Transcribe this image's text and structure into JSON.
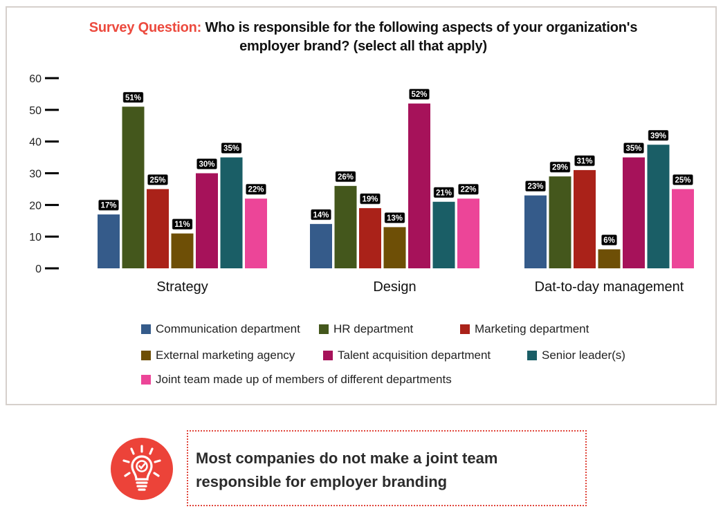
{
  "title": {
    "lead": "Survey Question:",
    "text": " Who is responsible for the following aspects of your organization's employer brand? (select all that apply)"
  },
  "colors": {
    "accent": "#ec4a3e",
    "label_bg": "#000000"
  },
  "chart_data": {
    "type": "bar",
    "title": "Survey Question: Who is responsible for the following aspects of your organization's employer brand? (select all that apply)",
    "xlabel": "",
    "ylabel": "",
    "ylim": [
      0,
      60
    ],
    "yticks": [
      "0",
      "10",
      "20",
      "30",
      "40",
      "50",
      "60"
    ],
    "grid": false,
    "legend_position": "bottom",
    "categories": [
      "Strategy",
      "Design",
      "Dat-to-day management"
    ],
    "series": [
      {
        "name": "Communication department",
        "color": "#355b8a",
        "values": [
          17,
          14,
          23
        ],
        "labels": [
          "17%",
          "14%",
          "23%"
        ]
      },
      {
        "name": "HR department",
        "color": "#44571c",
        "values": [
          51,
          26,
          29
        ],
        "labels": [
          "51%",
          "26%",
          "29%"
        ]
      },
      {
        "name": "Marketing department",
        "color": "#aa2219",
        "values": [
          25,
          19,
          31
        ],
        "labels": [
          "25%",
          "19%",
          "31%"
        ]
      },
      {
        "name": "External marketing agency",
        "color": "#6e4f06",
        "values": [
          11,
          13,
          6
        ],
        "labels": [
          "11%",
          "13%",
          "6%"
        ]
      },
      {
        "name": "Talent acquisition department",
        "color": "#a6125a",
        "values": [
          30,
          52,
          35
        ],
        "labels": [
          "30%",
          "52%",
          "35%"
        ]
      },
      {
        "name": "Senior leader(s)",
        "color": "#1a5e66",
        "values": [
          35,
          21,
          39
        ],
        "labels": [
          "35%",
          "21%",
          "39%"
        ]
      },
      {
        "name": "Joint team made up of members of different departments",
        "color": "#ec4598",
        "values": [
          22,
          22,
          25
        ],
        "labels": [
          "22%",
          "22%",
          "25%"
        ]
      }
    ]
  },
  "callout": {
    "icon": "lightbulb-check-icon",
    "text": "Most companies do not make a joint team responsible for employer branding"
  }
}
